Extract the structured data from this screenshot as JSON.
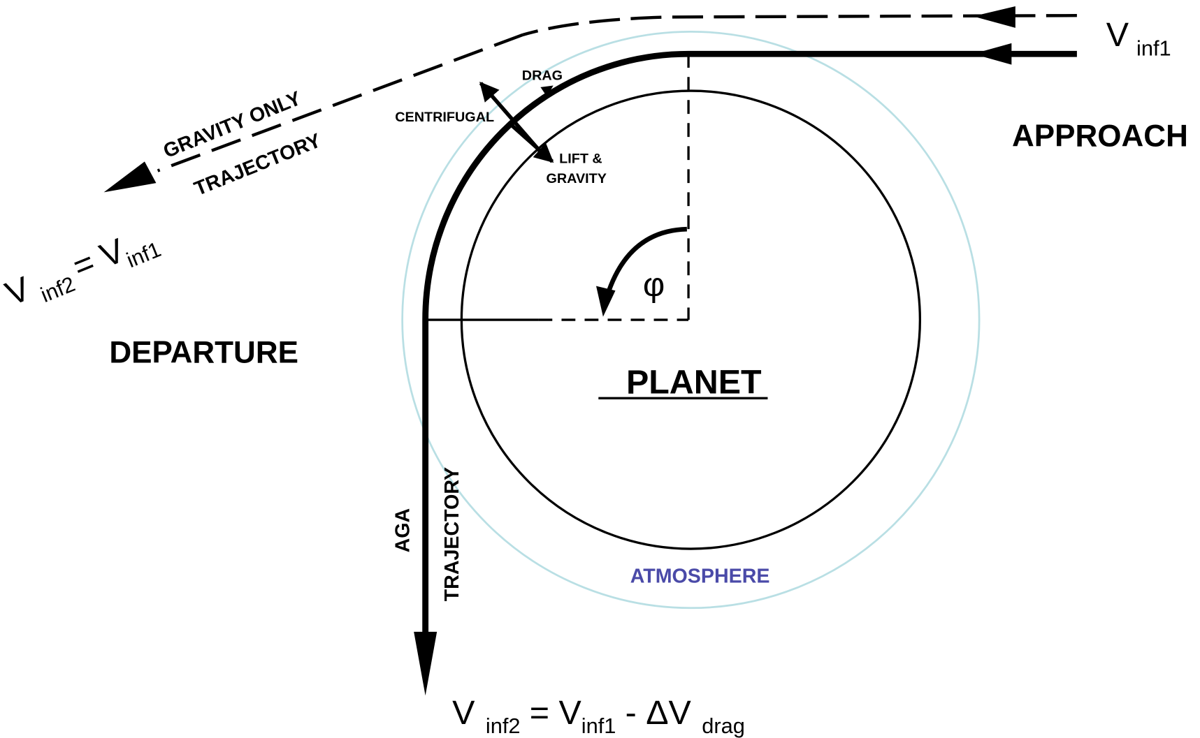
{
  "labels": {
    "approach": "APPROACH",
    "departure": "DEPARTURE",
    "planet": "PLANET",
    "atmosphere": "ATMOSPHERE",
    "angle": "φ"
  },
  "gravity_trajectory": [
    "GRAVITY ONLY",
    "TRAJECTORY"
  ],
  "aga_trajectory": [
    "AGA",
    "TRAJECTORY"
  ],
  "forces": {
    "drag": "DRAG",
    "centrifugal": "CENTRIFUGAL",
    "lift": [
      "LIFT &",
      "GRAVITY"
    ]
  },
  "equations": {
    "approach": [
      "V",
      "inf1"
    ],
    "gravity_departure": [
      "V",
      "inf2",
      "= V",
      "inf1"
    ],
    "aga_departure": [
      "V",
      "inf2",
      "= V",
      "inf1",
      "- ΔV",
      "drag"
    ]
  }
}
